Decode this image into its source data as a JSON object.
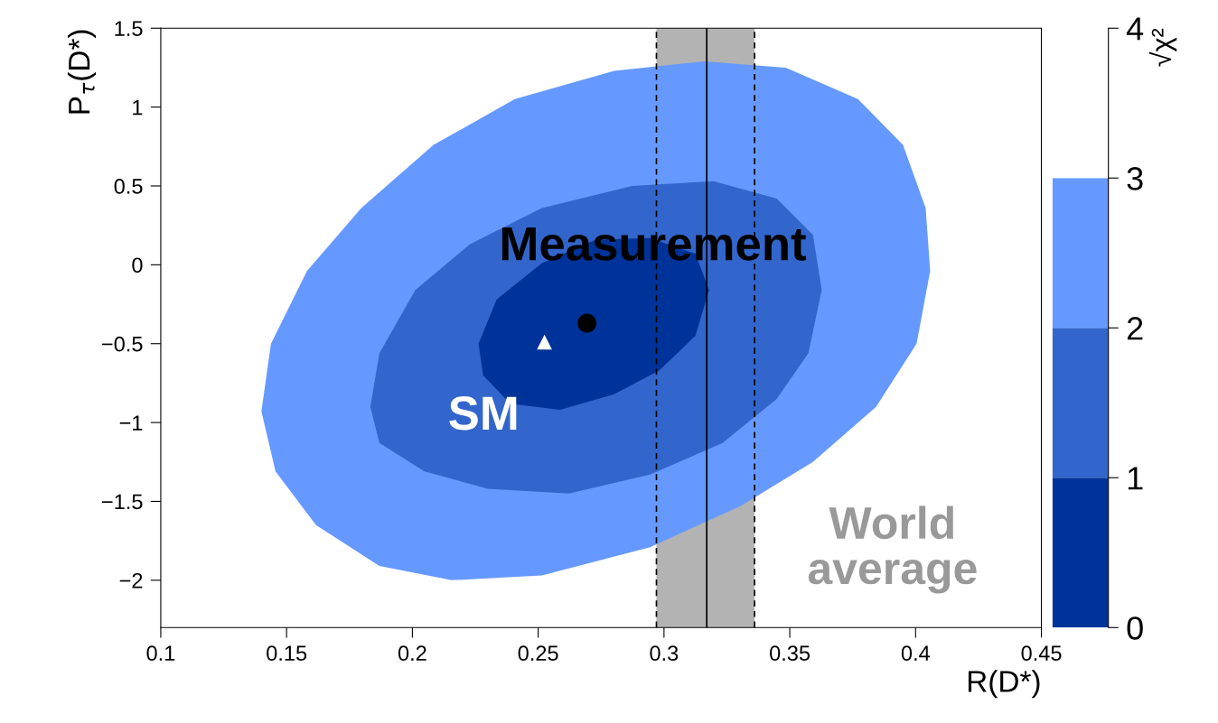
{
  "chart_data": {
    "type": "scatter",
    "xlabel": "R(D*)",
    "ylabel": "P$_{τ}$(D*)",
    "clabel": "√χ²",
    "xlim": [
      0.1,
      0.45
    ],
    "xticks": [
      0.1,
      0.15,
      0.2,
      0.25,
      0.3,
      0.35,
      0.4,
      0.45
    ],
    "ylim": [
      -2.3,
      1.5
    ],
    "yticks": [
      {
        "value": -2,
        "label": "−2"
      },
      {
        "value": -1.5,
        "label": "−1.5"
      },
      {
        "value": -1,
        "label": "−1"
      },
      {
        "value": -0.5,
        "label": "−0.5"
      },
      0,
      0.5,
      1,
      1.5
    ],
    "clim": [
      0,
      4
    ],
    "cticks": [
      0,
      1,
      2,
      3,
      4
    ],
    "grid": false,
    "legend": false,
    "series": [
      {
        "type": "area",
        "color": "#6699ff",
        "x": [
          0.14,
          0.1438,
          0.1581,
          0.1797,
          0.2084,
          0.2407,
          0.2802,
          0.3161,
          0.3484,
          0.3771,
          0.395,
          0.404,
          0.4058,
          0.4004,
          0.3843,
          0.3592,
          0.3304,
          0.2945,
          0.2515,
          0.2156,
          0.1869,
          0.1617,
          0.1456
        ],
        "values": [
          -0.93,
          -0.5,
          -0.04,
          0.36,
          0.76,
          1.05,
          1.23,
          1.29,
          1.25,
          1.05,
          0.76,
          0.36,
          -0.04,
          -0.5,
          -0.9,
          -1.25,
          -1.53,
          -1.79,
          -1.97,
          -2.0,
          -1.91,
          -1.65,
          -1.31
        ]
      },
      {
        "type": "area",
        "color": "#3366cc",
        "x": [
          0.1833,
          0.1869,
          0.2012,
          0.2228,
          0.2515,
          0.2874,
          0.3197,
          0.3448,
          0.3592,
          0.3627,
          0.3574,
          0.3448,
          0.3233,
          0.2945,
          0.2622,
          0.2299,
          0.2048,
          0.1869
        ],
        "values": [
          -0.9,
          -0.56,
          -0.16,
          0.13,
          0.36,
          0.5,
          0.53,
          0.42,
          0.19,
          -0.16,
          -0.56,
          -0.85,
          -1.13,
          -1.33,
          -1.45,
          -1.42,
          -1.31,
          -1.13
        ]
      },
      {
        "type": "area",
        "color": "#003399",
        "x": [
          0.2263,
          0.2335,
          0.2515,
          0.273,
          0.2945,
          0.3125,
          0.3179,
          0.3125,
          0.2981,
          0.2802,
          0.2587,
          0.2389,
          0.2281
        ],
        "values": [
          -0.5,
          -0.22,
          0.01,
          0.16,
          0.17,
          0.07,
          -0.16,
          -0.45,
          -0.67,
          -0.82,
          -0.92,
          -0.88,
          -0.7
        ]
      },
      {
        "name": "Measurement",
        "color": "#000000",
        "marker": "circle",
        "x": [
          0.2694
        ],
        "values": [
          -0.37
        ]
      },
      {
        "name": "SM",
        "color": "#ffffff",
        "marker": "triangle",
        "x": [
          0.2525
        ],
        "values": [
          -0.49
        ]
      }
    ],
    "bands": [
      {
        "axis": "x",
        "from": 0.297,
        "to": 0.336,
        "label": "World average",
        "color": "#b3b3b3"
      }
    ],
    "ref_lines": [
      {
        "axis": "x",
        "value": 0.317,
        "color": "#000000",
        "line_style": "solid"
      },
      {
        "axis": "x",
        "value": 0.297,
        "color": "#000000",
        "line_style": "dashed"
      },
      {
        "axis": "x",
        "value": 0.336,
        "color": "#000000",
        "line_style": "dashed"
      }
    ]
  }
}
